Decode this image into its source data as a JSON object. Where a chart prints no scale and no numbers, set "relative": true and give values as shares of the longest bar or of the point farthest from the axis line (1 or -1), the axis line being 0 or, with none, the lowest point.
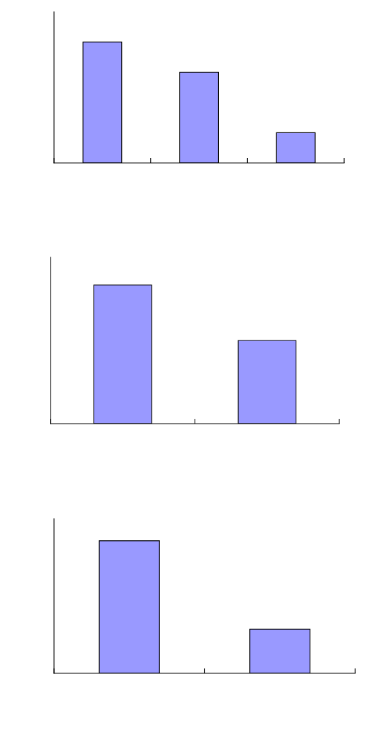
{
  "chart_data": [
    {
      "type": "bar",
      "relative": true,
      "categories": [
        null,
        null,
        null
      ],
      "values": [
        1,
        0.75,
        0.25
      ],
      "color": "#9999ff",
      "grid": false,
      "legend": false
    },
    {
      "type": "bar",
      "relative": true,
      "categories": [
        null,
        null
      ],
      "values": [
        1,
        0.6
      ],
      "color": "#9999ff",
      "grid": false,
      "legend": false
    },
    {
      "type": "bar",
      "relative": true,
      "categories": [
        null,
        null
      ],
      "values": [
        1,
        0.333
      ],
      "color": "#9999ff",
      "grid": false,
      "legend": false
    }
  ]
}
